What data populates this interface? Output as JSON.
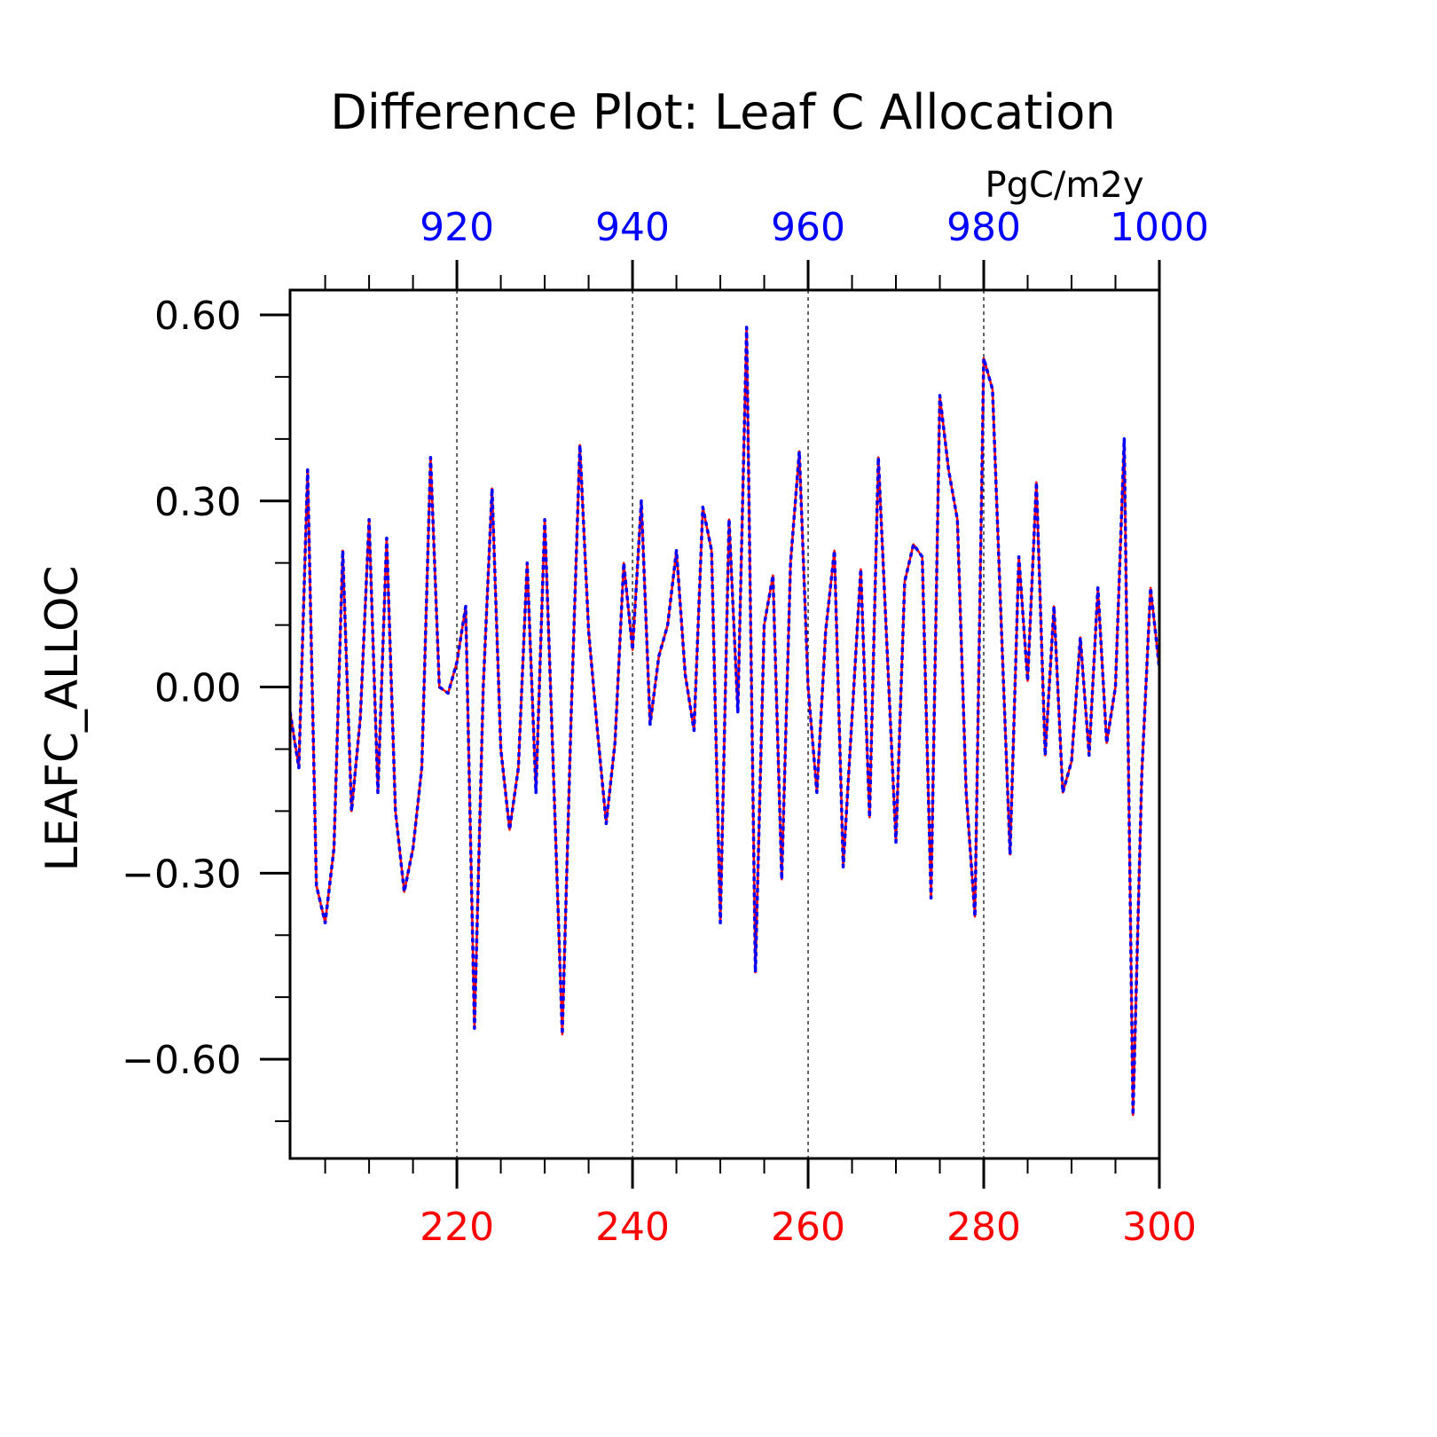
{
  "chart_data": {
    "type": "line",
    "title": "Difference Plot: Leaf C Allocation",
    "units": "PgC/m2y",
    "ylabel": "LEAFC_ALLOC",
    "ylim": [
      -0.76,
      0.64
    ],
    "y_ticks": [
      "0.60",
      "0.30",
      "0.00",
      "−0.30",
      "−0.60"
    ],
    "y_tick_values": [
      0.6,
      0.3,
      0.0,
      -0.3,
      -0.6
    ],
    "x_bottom": {
      "range": [
        201,
        300
      ],
      "ticks": [
        "220",
        "240",
        "260",
        "280",
        "300"
      ],
      "tick_values": [
        220,
        240,
        260,
        280,
        300
      ],
      "color": "#ff0000"
    },
    "x_top": {
      "range": [
        901,
        1000
      ],
      "ticks": [
        "920",
        "940",
        "960",
        "980",
        "1000"
      ],
      "tick_values": [
        920,
        940,
        960,
        980,
        1000
      ],
      "color": "#0000ff"
    },
    "grid": "vertical dashed at major x ticks",
    "series": [
      {
        "x_axis": "bottom",
        "color": "#ff0000",
        "style": "solid",
        "x": [
          201,
          202,
          203,
          204,
          205,
          206,
          207,
          208,
          209,
          210,
          211,
          212,
          213,
          214,
          215,
          216,
          217,
          218,
          219,
          220,
          221,
          222,
          223,
          224,
          225,
          226,
          227,
          228,
          229,
          230,
          231,
          232,
          233,
          234,
          235,
          236,
          237,
          238,
          239,
          240,
          241,
          242,
          243,
          244,
          245,
          246,
          247,
          248,
          249,
          250,
          251,
          252,
          253,
          254,
          255,
          256,
          257,
          258,
          259,
          260,
          261,
          262,
          263,
          264,
          265,
          266,
          267,
          268,
          269,
          270,
          271,
          272,
          273,
          274,
          275,
          276,
          277,
          278,
          279,
          280,
          281,
          282,
          283,
          284,
          285,
          286,
          287,
          288,
          289,
          290,
          291,
          292,
          293,
          294,
          295,
          296,
          297,
          298,
          299,
          300
        ],
        "values": [
          -0.04,
          -0.13,
          0.35,
          -0.32,
          -0.38,
          -0.26,
          0.22,
          -0.2,
          -0.05,
          0.27,
          -0.17,
          0.24,
          -0.2,
          -0.33,
          -0.26,
          -0.13,
          0.37,
          0.0,
          -0.01,
          0.04,
          0.13,
          -0.55,
          0.0,
          0.32,
          -0.1,
          -0.23,
          -0.13,
          0.2,
          -0.17,
          0.27,
          -0.14,
          -0.56,
          -0.05,
          0.39,
          0.09,
          -0.07,
          -0.22,
          -0.09,
          0.2,
          0.06,
          0.3,
          -0.06,
          0.05,
          0.1,
          0.22,
          0.02,
          -0.07,
          0.29,
          0.22,
          -0.38,
          0.27,
          -0.04,
          0.58,
          -0.46,
          0.1,
          0.18,
          -0.31,
          0.2,
          0.38,
          0.0,
          -0.17,
          0.09,
          0.22,
          -0.29,
          -0.05,
          0.19,
          -0.21,
          0.37,
          0.06,
          -0.25,
          0.17,
          0.23,
          0.21,
          -0.34,
          0.47,
          0.35,
          0.27,
          -0.17,
          -0.37,
          0.53,
          0.48,
          0.1,
          -0.27,
          0.21,
          0.01,
          0.33,
          -0.11,
          0.13,
          -0.17,
          -0.12,
          0.08,
          -0.11,
          0.16,
          -0.09,
          0.0,
          0.4,
          -0.69,
          -0.14,
          0.16,
          0.03
        ]
      },
      {
        "x_axis": "top",
        "color": "#0000ff",
        "style": "dashed",
        "x": [
          901,
          902,
          903,
          904,
          905,
          906,
          907,
          908,
          909,
          910,
          911,
          912,
          913,
          914,
          915,
          916,
          917,
          918,
          919,
          920,
          921,
          922,
          923,
          924,
          925,
          926,
          927,
          928,
          929,
          930,
          931,
          932,
          933,
          934,
          935,
          936,
          937,
          938,
          939,
          940,
          941,
          942,
          943,
          944,
          945,
          946,
          947,
          948,
          949,
          950,
          951,
          952,
          953,
          954,
          955,
          956,
          957,
          958,
          959,
          960,
          961,
          962,
          963,
          964,
          965,
          966,
          967,
          968,
          969,
          970,
          971,
          972,
          973,
          974,
          975,
          976,
          977,
          978,
          979,
          980,
          981,
          982,
          983,
          984,
          985,
          986,
          987,
          988,
          989,
          990,
          991,
          992,
          993,
          994,
          995,
          996,
          997,
          998,
          999,
          1000
        ],
        "values": [
          -0.04,
          -0.13,
          0.35,
          -0.32,
          -0.38,
          -0.26,
          0.22,
          -0.2,
          -0.05,
          0.27,
          -0.17,
          0.24,
          -0.2,
          -0.33,
          -0.26,
          -0.13,
          0.37,
          0.0,
          -0.01,
          0.04,
          0.13,
          -0.55,
          0.0,
          0.32,
          -0.1,
          -0.23,
          -0.13,
          0.2,
          -0.17,
          0.27,
          -0.14,
          -0.56,
          -0.05,
          0.39,
          0.09,
          -0.07,
          -0.22,
          -0.09,
          0.2,
          0.06,
          0.3,
          -0.06,
          0.05,
          0.1,
          0.22,
          0.02,
          -0.07,
          0.29,
          0.22,
          -0.38,
          0.27,
          -0.04,
          0.58,
          -0.46,
          0.1,
          0.18,
          -0.31,
          0.2,
          0.38,
          0.0,
          -0.17,
          0.09,
          0.22,
          -0.29,
          -0.05,
          0.19,
          -0.21,
          0.37,
          0.06,
          -0.25,
          0.17,
          0.23,
          0.21,
          -0.34,
          0.47,
          0.35,
          0.27,
          -0.17,
          -0.37,
          0.53,
          0.48,
          0.1,
          -0.27,
          0.21,
          0.01,
          0.33,
          -0.11,
          0.13,
          -0.17,
          -0.12,
          0.08,
          -0.11,
          0.16,
          -0.09,
          0.0,
          0.4,
          -0.69,
          -0.14,
          0.16,
          0.03
        ]
      }
    ]
  }
}
